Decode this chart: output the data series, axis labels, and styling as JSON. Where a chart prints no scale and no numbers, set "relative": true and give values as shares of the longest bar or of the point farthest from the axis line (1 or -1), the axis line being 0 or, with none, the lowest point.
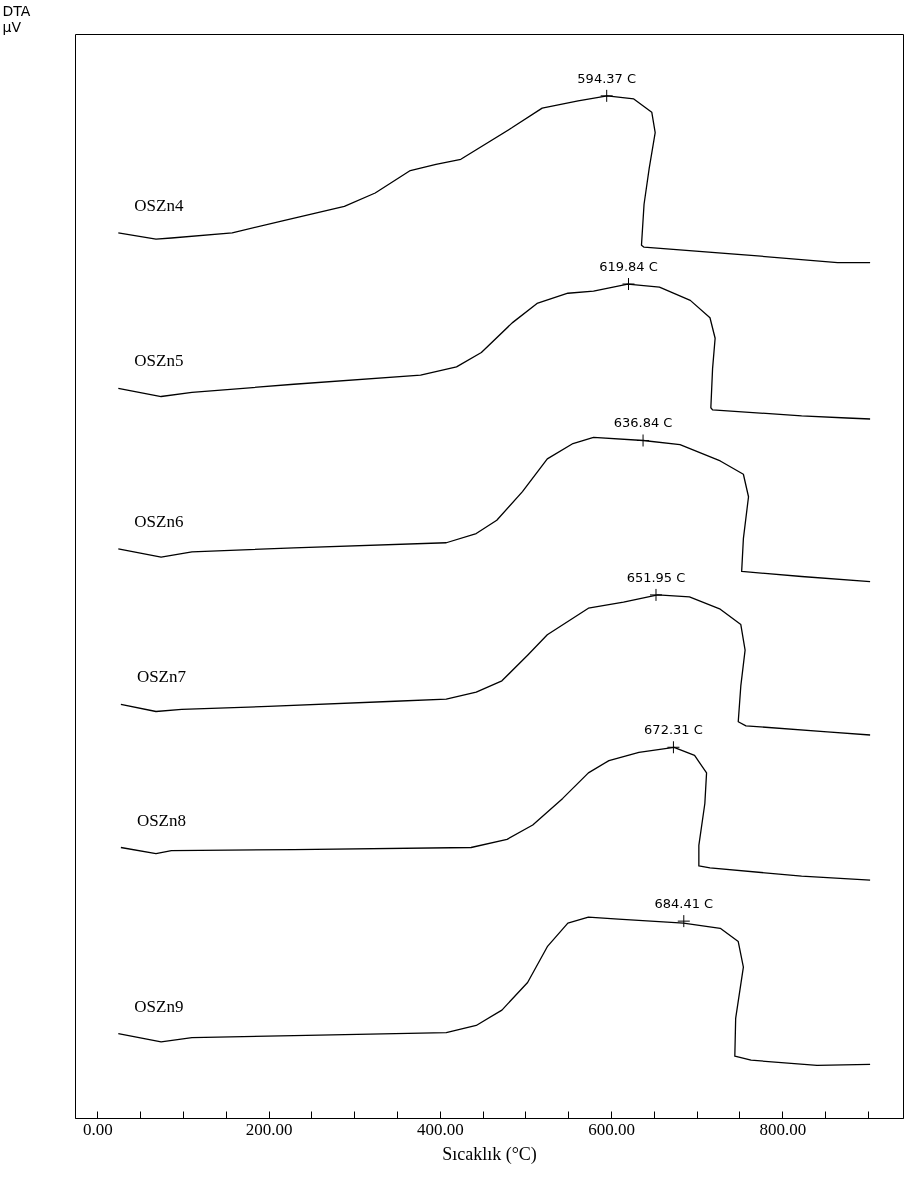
{
  "chart_data": {
    "type": "line",
    "relative": true,
    "xlabel": "Sıcaklık (°C)",
    "xlim": [
      -26,
      941
    ],
    "xticks": [
      {
        "value": 0,
        "label": "0.00"
      },
      {
        "value": 50,
        "label": null
      },
      {
        "value": 100,
        "label": null
      },
      {
        "value": 150,
        "label": null
      },
      {
        "value": 200,
        "label": "200.00"
      },
      {
        "value": 250,
        "label": null
      },
      {
        "value": 300,
        "label": null
      },
      {
        "value": 350,
        "label": null
      },
      {
        "value": 400,
        "label": "400.00"
      },
      {
        "value": 450,
        "label": null
      },
      {
        "value": 500,
        "label": null
      },
      {
        "value": 550,
        "label": null
      },
      {
        "value": 600,
        "label": "600.00"
      },
      {
        "value": 650,
        "label": null
      },
      {
        "value": 700,
        "label": null
      },
      {
        "value": 750,
        "label": null
      },
      {
        "value": 800,
        "label": "800.00"
      },
      {
        "value": 850,
        "label": null
      },
      {
        "value": 900,
        "label": null
      }
    ],
    "grid": false,
    "legend": false,
    "marker": "none",
    "line_style": "solid",
    "series": [
      {
        "name": "OSZn4",
        "color": "#000000",
        "x": [
          24,
          68,
          86,
          157,
          217,
          288,
          324,
          365,
          395,
          424,
          484,
          519,
          561,
          595,
          626,
          647,
          651,
          644,
          638,
          635,
          638,
          763,
          864,
          902
        ],
        "values": [
          0.866,
          0.86,
          0.861,
          0.866,
          0.878,
          0.892,
          0.905,
          0.927,
          0.933,
          0.938,
          0.969,
          0.988,
          0.995,
          1.0,
          0.997,
          0.984,
          0.964,
          0.929,
          0.894,
          0.854,
          0.852,
          0.844,
          0.837,
          0.837
        ]
      },
      {
        "name": "OSZn5",
        "color": "#000000",
        "x": [
          24,
          74,
          110,
          229,
          377,
          419,
          448,
          484,
          513,
          549,
          579,
          619,
          656,
          692,
          715,
          721,
          718,
          716,
          718,
          822,
          875,
          902
        ],
        "values": [
          0.714,
          0.706,
          0.71,
          0.718,
          0.727,
          0.735,
          0.749,
          0.778,
          0.797,
          0.807,
          0.809,
          0.816,
          0.813,
          0.8,
          0.783,
          0.763,
          0.733,
          0.695,
          0.693,
          0.687,
          0.685,
          0.684
        ]
      },
      {
        "name": "OSZn6",
        "color": "#000000",
        "x": [
          24,
          74,
          110,
          229,
          407,
          442,
          466,
          496,
          525,
          555,
          579,
          637,
          680,
          727,
          754,
          760,
          754,
          752,
          822,
          902
        ],
        "values": [
          0.557,
          0.549,
          0.554,
          0.558,
          0.563,
          0.572,
          0.585,
          0.613,
          0.645,
          0.66,
          0.666,
          0.663,
          0.659,
          0.643,
          0.63,
          0.608,
          0.567,
          0.535,
          0.53,
          0.525
        ]
      },
      {
        "name": "OSZn7",
        "color": "#000000",
        "x": [
          27,
          68,
          98,
          199,
          347,
          407,
          442,
          472,
          502,
          525,
          573,
          614,
          654,
          691,
          727,
          751,
          756,
          751,
          748,
          757,
          852,
          902
        ],
        "values": [
          0.405,
          0.398,
          0.4,
          0.403,
          0.408,
          0.41,
          0.417,
          0.428,
          0.453,
          0.473,
          0.499,
          0.505,
          0.512,
          0.51,
          0.498,
          0.483,
          0.458,
          0.423,
          0.388,
          0.384,
          0.378,
          0.375
        ]
      },
      {
        "name": "OSZn8",
        "color": "#000000",
        "x": [
          27,
          68,
          86,
          229,
          436,
          478,
          508,
          543,
          573,
          597,
          632,
          673,
          697,
          711,
          709,
          702,
          702,
          715,
          822,
          902
        ],
        "values": [
          0.265,
          0.259,
          0.262,
          0.263,
          0.265,
          0.273,
          0.287,
          0.313,
          0.338,
          0.35,
          0.358,
          0.363,
          0.355,
          0.338,
          0.308,
          0.267,
          0.247,
          0.245,
          0.237,
          0.233
        ]
      },
      {
        "name": "OSZn9",
        "color": "#000000",
        "x": [
          24,
          74,
          110,
          229,
          407,
          442,
          472,
          502,
          525,
          549,
          573,
          608,
          684,
          727,
          748,
          754,
          745,
          744,
          763,
          840,
          902
        ],
        "values": [
          0.083,
          0.075,
          0.079,
          0.081,
          0.084,
          0.091,
          0.106,
          0.133,
          0.168,
          0.191,
          0.197,
          0.195,
          0.191,
          0.186,
          0.173,
          0.148,
          0.098,
          0.061,
          0.057,
          0.052,
          0.053
        ]
      }
    ],
    "annotations": [
      {
        "text": "594.37 C",
        "x": 594.37,
        "y": 1.0
      },
      {
        "text": "619.84 C",
        "x": 619.84,
        "y": 0.816
      },
      {
        "text": "636.84 C",
        "x": 636.84,
        "y": 0.663
      },
      {
        "text": "651.95 C",
        "x": 651.95,
        "y": 0.512
      },
      {
        "text": "672.31 C",
        "x": 672.31,
        "y": 0.363
      },
      {
        "text": "684.41 C",
        "x": 684.41,
        "y": 0.193
      },
      "DTA µV"
    ]
  }
}
